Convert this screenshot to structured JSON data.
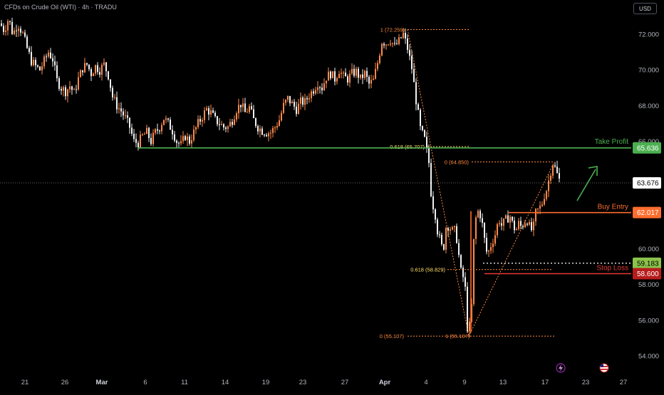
{
  "header": {
    "symbol_line": "CFDs on Crude Oil (WTI) · 4h · TRADU",
    "currency": "USD"
  },
  "colors": {
    "background": "#000000",
    "bull_candle": "#ff8a4c",
    "bear_candle": "#f0f0f0",
    "take_profit": "#4caf50",
    "buy_entry": "#ff6d2e",
    "stop_loss": "#e53935",
    "fib": "#ff8a3d",
    "fib_618": "#ffe066",
    "last_price": "#ffffff",
    "arrow": "#4caf50"
  },
  "chart_data": {
    "type": "candlestick",
    "instrument": "CFDs on Crude Oil (WTI)",
    "timeframe": "4h",
    "y_axis": {
      "min": 54,
      "max": 72,
      "ticks": [
        54,
        56,
        58,
        60,
        62,
        64,
        66,
        68,
        70,
        72
      ],
      "tick_labels": [
        "54.000",
        "56.000",
        "58.000",
        "60.000",
        "62.000",
        "64.000",
        "66.000",
        "68.000",
        "70.000",
        "72.000"
      ]
    },
    "x_axis": {
      "tick_labels": [
        "21",
        "26",
        "Mar",
        "6",
        "11",
        "14",
        "19",
        "23",
        "27",
        "Apr",
        "4",
        "9",
        "13",
        "17",
        "23",
        "27"
      ]
    },
    "grid": false,
    "price_path": [
      [
        0,
        72.6
      ],
      [
        6,
        72.2
      ],
      [
        12,
        72.9
      ],
      [
        18,
        72.0
      ],
      [
        25,
        72.6
      ],
      [
        32,
        72.0
      ],
      [
        38,
        71.2
      ],
      [
        44,
        70.5
      ],
      [
        50,
        70.2
      ],
      [
        56,
        70.0
      ],
      [
        62,
        70.5
      ],
      [
        68,
        71.0
      ],
      [
        74,
        70.6
      ],
      [
        80,
        69.4
      ],
      [
        86,
        69.0
      ],
      [
        92,
        68.8
      ],
      [
        98,
        69.1
      ],
      [
        104,
        68.7
      ],
      [
        110,
        69.5
      ],
      [
        116,
        70.1
      ],
      [
        122,
        70.3
      ],
      [
        128,
        69.8
      ],
      [
        134,
        70.2
      ],
      [
        140,
        70.0
      ],
      [
        146,
        70.3
      ],
      [
        152,
        69.7
      ],
      [
        158,
        68.5
      ],
      [
        164,
        68.0
      ],
      [
        170,
        67.7
      ],
      [
        176,
        67.3
      ],
      [
        182,
        66.8
      ],
      [
        188,
        66.0
      ],
      [
        194,
        65.9
      ],
      [
        200,
        66.3
      ],
      [
        206,
        66.5
      ],
      [
        212,
        66.0
      ],
      [
        218,
        66.5
      ],
      [
        224,
        66.8
      ],
      [
        230,
        67.3
      ],
      [
        236,
        67.0
      ],
      [
        242,
        66.6
      ],
      [
        248,
        66.0
      ],
      [
        254,
        65.8
      ],
      [
        260,
        66.3
      ],
      [
        266,
        66.0
      ],
      [
        272,
        66.5
      ],
      [
        278,
        67.0
      ],
      [
        284,
        67.4
      ],
      [
        290,
        67.8
      ],
      [
        296,
        67.6
      ],
      [
        302,
        67.2
      ],
      [
        308,
        67.0
      ],
      [
        314,
        66.8
      ],
      [
        320,
        66.8
      ],
      [
        326,
        67.2
      ],
      [
        332,
        67.8
      ],
      [
        338,
        68.1
      ],
      [
        344,
        67.6
      ],
      [
        350,
        67.9
      ],
      [
        356,
        67.2
      ],
      [
        362,
        66.8
      ],
      [
        368,
        66.6
      ],
      [
        374,
        66.5
      ],
      [
        380,
        66.5
      ],
      [
        386,
        66.8
      ],
      [
        392,
        67.2
      ],
      [
        398,
        68.0
      ],
      [
        404,
        68.4
      ],
      [
        410,
        68.1
      ],
      [
        416,
        67.8
      ],
      [
        422,
        68.2
      ],
      [
        428,
        68.2
      ],
      [
        434,
        68.6
      ],
      [
        440,
        68.9
      ],
      [
        446,
        69.3
      ],
      [
        452,
        69.0
      ],
      [
        458,
        69.6
      ],
      [
        464,
        69.8
      ],
      [
        470,
        69.5
      ],
      [
        476,
        70.0
      ],
      [
        482,
        69.6
      ],
      [
        488,
        69.5
      ],
      [
        494,
        69.8
      ],
      [
        500,
        69.9
      ],
      [
        506,
        69.5
      ],
      [
        512,
        69.8
      ],
      [
        518,
        69.2
      ],
      [
        524,
        69.4
      ],
      [
        530,
        70.4
      ],
      [
        536,
        71.6
      ],
      [
        542,
        71.5
      ],
      [
        548,
        71.7
      ],
      [
        554,
        71.3
      ],
      [
        560,
        71.6
      ],
      [
        566,
        72.0
      ],
      [
        572,
        71.2
      ],
      [
        578,
        70.1
      ],
      [
        584,
        68.3
      ],
      [
        590,
        66.7
      ],
      [
        596,
        66.1
      ],
      [
        602,
        64.8
      ],
      [
        606,
        62.6
      ],
      [
        610,
        62.2
      ],
      [
        614,
        61.0
      ],
      [
        618,
        60.4
      ],
      [
        622,
        59.8
      ],
      [
        626,
        61.2
      ],
      [
        630,
        61.3
      ],
      [
        634,
        61.0
      ],
      [
        638,
        61.0
      ],
      [
        642,
        60.4
      ],
      [
        646,
        58.8
      ],
      [
        650,
        58.4
      ],
      [
        654,
        57.5
      ],
      [
        656,
        55.6
      ],
      [
        658,
        55.3
      ],
      [
        662,
        56.8
      ],
      [
        665,
        60.4
      ],
      [
        668,
        61.7
      ],
      [
        672,
        62.2
      ],
      [
        676,
        61.6
      ],
      [
        680,
        60.5
      ],
      [
        684,
        59.6
      ],
      [
        688,
        60.1
      ],
      [
        692,
        60.5
      ],
      [
        696,
        60.9
      ],
      [
        700,
        61.7
      ],
      [
        704,
        61.3
      ],
      [
        708,
        61.5
      ],
      [
        712,
        61.7
      ],
      [
        716,
        61.8
      ],
      [
        720,
        61.3
      ],
      [
        724,
        61.0
      ],
      [
        728,
        61.4
      ],
      [
        732,
        61.2
      ],
      [
        736,
        61.5
      ],
      [
        740,
        61.6
      ],
      [
        744,
        61.1
      ],
      [
        748,
        61.0
      ],
      [
        752,
        62.0
      ],
      [
        756,
        62.2
      ],
      [
        760,
        62.4
      ],
      [
        764,
        63.0
      ],
      [
        768,
        63.4
      ],
      [
        772,
        64.2
      ],
      [
        776,
        64.8
      ],
      [
        780,
        64.4
      ],
      [
        784,
        63.9
      ],
      [
        788,
        63.7
      ]
    ],
    "fib_upper": {
      "p100": 72.259,
      "p618": 65.707,
      "p0": 64.85,
      "labels": [
        "1 (72.259)",
        "0.618 (65.707)",
        "0 (64.850)"
      ]
    },
    "fib_lower": {
      "p0": 55.107,
      "p618": 58.829,
      "p100": 55.107,
      "labels": [
        "0 (55.107)",
        "0.618 (58.829)",
        "1 (55.107)"
      ]
    },
    "levels": {
      "take_profit": {
        "label": "Take Profit",
        "price": 65.636,
        "price_label": "65.636"
      },
      "buy_entry": {
        "label": "Buy Entry",
        "price": 62.017,
        "price_label": "62.017"
      },
      "stop_loss": {
        "label": "Stop Loss",
        "price": 58.6,
        "price_label": "58.600"
      },
      "dotted_level": {
        "price": 59.183,
        "price_label": "59.183"
      },
      "last_price": {
        "price": 63.676,
        "price_label": "63.676"
      }
    }
  }
}
